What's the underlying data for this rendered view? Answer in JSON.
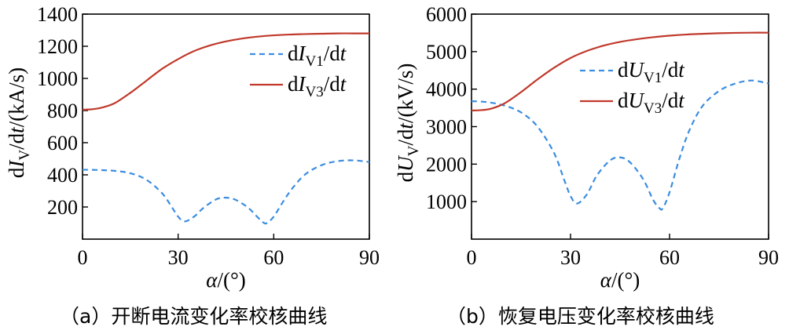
{
  "chart_data": [
    {
      "type": "line",
      "caption": "（a）开断电流变化率校核曲线",
      "xlabel": {
        "main": "α",
        "unit": "/(°)"
      },
      "ylabel": {
        "pre": "d",
        "var": "I",
        "sub": "V",
        "mid": "/d",
        "var2": "t",
        "unit": "/(kA/s)"
      },
      "xlim": [
        0,
        90
      ],
      "ylim": [
        0,
        1400
      ],
      "xticks": [
        0,
        30,
        60,
        90
      ],
      "yticks": [
        200,
        400,
        600,
        800,
        1000,
        1200,
        1400
      ],
      "legend_position": "upper-right",
      "series": [
        {
          "name": "dIV1/dt",
          "legend": {
            "pre": "d",
            "var": "I",
            "sub": "V1",
            "mid": "/d",
            "var2": "t"
          },
          "color": "#3b8de0",
          "style": "dashed",
          "x": [
            0,
            5,
            10,
            15,
            20,
            25,
            28,
            30,
            32,
            35,
            38,
            42,
            45,
            48,
            52,
            55,
            57,
            58,
            60,
            63,
            66,
            70,
            75,
            80,
            85,
            90
          ],
          "y": [
            432,
            430,
            425,
            410,
            370,
            285,
            200,
            140,
            110,
            140,
            195,
            248,
            258,
            245,
            195,
            135,
            100,
            102,
            140,
            235,
            320,
            405,
            460,
            485,
            490,
            480
          ]
        },
        {
          "name": "dIV3/dt",
          "legend": {
            "pre": "d",
            "var": "I",
            "sub": "V3",
            "mid": "/d",
            "var2": "t"
          },
          "color": "#c0392b",
          "style": "solid",
          "x": [
            0,
            3,
            6,
            10,
            15,
            20,
            25,
            30,
            35,
            40,
            45,
            50,
            55,
            60,
            65,
            70,
            75,
            80,
            85,
            90
          ],
          "y": [
            805,
            808,
            818,
            845,
            910,
            985,
            1060,
            1120,
            1170,
            1205,
            1230,
            1248,
            1260,
            1268,
            1273,
            1276,
            1278,
            1280,
            1280,
            1280
          ]
        }
      ]
    },
    {
      "type": "line",
      "caption": "（b）恢复电压变化率校核曲线",
      "xlabel": {
        "main": "α",
        "unit": "/(°)"
      },
      "ylabel": {
        "pre": "d",
        "var": "U",
        "sub": "V",
        "mid": "/d",
        "var2": "t",
        "unit": "/(kV/s)"
      },
      "xlim": [
        0,
        90
      ],
      "ylim": [
        0,
        6000
      ],
      "xticks": [
        0,
        30,
        60,
        90
      ],
      "yticks": [
        1000,
        2000,
        3000,
        4000,
        5000,
        6000
      ],
      "legend_position": "upper-right",
      "series": [
        {
          "name": "dUV1/dt",
          "legend": {
            "pre": "d",
            "var": "U",
            "sub": "V1",
            "mid": "/d",
            "var2": "t"
          },
          "color": "#3b8de0",
          "style": "dashed",
          "x": [
            0,
            5,
            10,
            15,
            20,
            25,
            28,
            30,
            32,
            35,
            38,
            42,
            45,
            48,
            52,
            55,
            57,
            58,
            60,
            63,
            66,
            70,
            75,
            80,
            85,
            90
          ],
          "y": [
            3680,
            3650,
            3560,
            3380,
            3000,
            2300,
            1600,
            1150,
            950,
            1200,
            1700,
            2100,
            2180,
            2050,
            1600,
            1050,
            820,
            830,
            1250,
            2150,
            2900,
            3550,
            3950,
            4150,
            4230,
            4150
          ]
        },
        {
          "name": "dUV3/dt",
          "legend": {
            "pre": "d",
            "var": "U",
            "sub": "V3",
            "mid": "/d",
            "var2": "t"
          },
          "color": "#c0392b",
          "style": "solid",
          "x": [
            0,
            3,
            6,
            10,
            15,
            20,
            25,
            30,
            35,
            40,
            45,
            50,
            55,
            60,
            65,
            70,
            75,
            80,
            85,
            90
          ],
          "y": [
            3430,
            3440,
            3480,
            3620,
            3920,
            4260,
            4570,
            4830,
            5020,
            5160,
            5260,
            5330,
            5385,
            5425,
            5455,
            5475,
            5490,
            5500,
            5505,
            5505
          ]
        }
      ]
    }
  ]
}
